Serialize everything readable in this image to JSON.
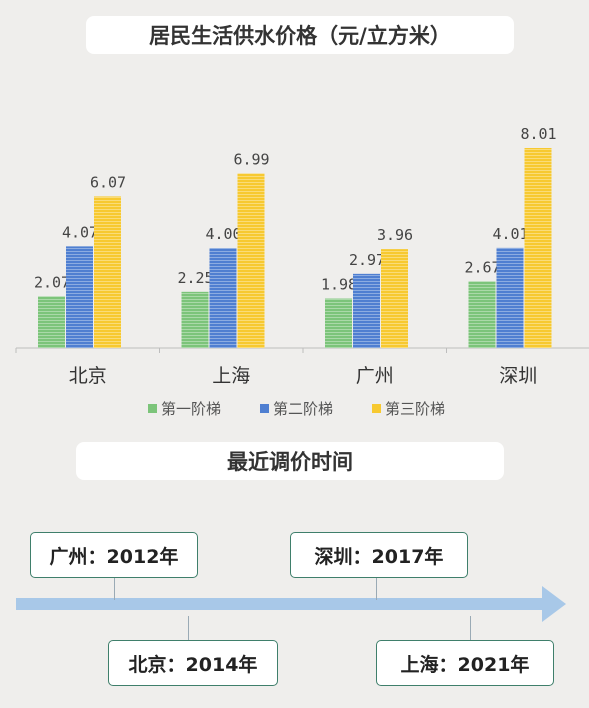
{
  "chart_title": "居民生活供水价格（元/立方米）",
  "timeline_title": "最近调价时间",
  "chart_data": {
    "type": "bar",
    "title": "居民生活供水价格（元/立方米）",
    "categories": [
      "北京",
      "上海",
      "广州",
      "深圳"
    ],
    "series": [
      {
        "name": "第一阶梯",
        "color": "#7cc47a",
        "values": [
          2.07,
          2.25,
          1.98,
          2.67
        ],
        "labels": [
          "2.07",
          "2.25",
          "1.98",
          "2.67"
        ]
      },
      {
        "name": "第二阶梯",
        "color": "#4f7fd1",
        "values": [
          4.07,
          4.0,
          2.97,
          4.01
        ],
        "labels": [
          "4.07",
          "4.00",
          "2.97",
          "4.01"
        ]
      },
      {
        "name": "第三阶梯",
        "color": "#f7c930",
        "values": [
          6.07,
          6.99,
          3.96,
          8.01
        ],
        "labels": [
          "6.07",
          "6.99",
          "3.96",
          "8.01"
        ]
      }
    ],
    "ylim": [
      0,
      8.01
    ],
    "grid": false,
    "legend": "bottom"
  },
  "timeline": [
    {
      "text": "广州：2012年",
      "side": "top"
    },
    {
      "text": "北京：2014年",
      "side": "bottom"
    },
    {
      "text": "深圳：2017年",
      "side": "top"
    },
    {
      "text": "上海：2021年",
      "side": "bottom"
    }
  ],
  "colors": {
    "arrow": "#a8c8e8",
    "box_border": "#3f7f6b"
  }
}
